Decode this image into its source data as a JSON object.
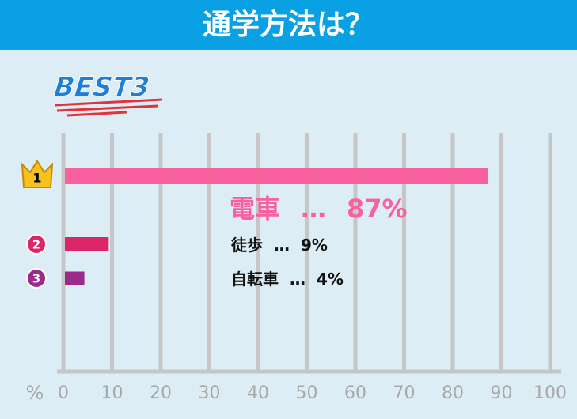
{
  "chart_data": {
    "type": "hbar",
    "title": "通学方法は？",
    "badge": "BEST3",
    "ranks": [
      "1",
      "2",
      "3"
    ],
    "categories": [
      "電車",
      "徒歩",
      "自転車"
    ],
    "values": [
      87,
      9,
      4
    ],
    "value_labels": [
      "87%",
      "9%",
      "4%"
    ],
    "separator": "…",
    "colors": [
      "#f9609f",
      "#db2769",
      "#9c2a8a"
    ],
    "x_unit": "%",
    "xlim": [
      0,
      100
    ],
    "xticks": [
      0,
      10,
      20,
      30,
      40,
      50,
      60,
      70,
      80,
      90,
      100
    ],
    "grid": true
  }
}
